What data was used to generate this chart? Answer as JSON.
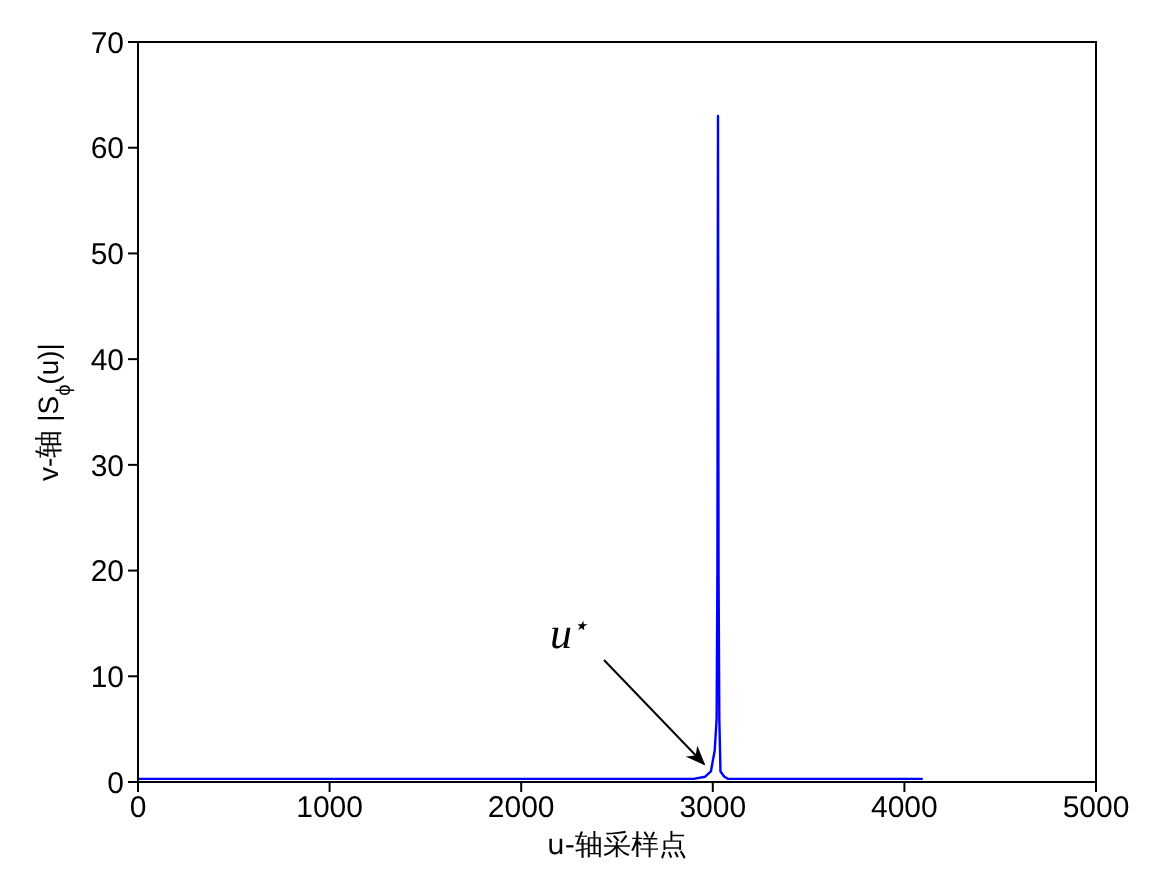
{
  "chart_data": {
    "type": "line",
    "xlabel": "u-轴采样点",
    "ylabel": "v-轴 |S$_{ϕ}$(u)|",
    "x": [
      0,
      1000,
      2000,
      2900,
      2960,
      2990,
      3010,
      3020,
      3024,
      3027,
      3030,
      3034,
      3040,
      3060,
      3080,
      3500,
      4096
    ],
    "series": [
      {
        "color": "#0000ff",
        "values": [
          0.3,
          0.3,
          0.3,
          0.3,
          0.5,
          1,
          3,
          6,
          20,
          63,
          20,
          6,
          1,
          0.5,
          0.3,
          0.3,
          0.3
        ]
      }
    ],
    "xlim": [
      0,
      5000
    ],
    "xticks": [
      0,
      1000,
      2000,
      3000,
      4000,
      5000
    ],
    "ylim": [
      0,
      70
    ],
    "yticks": [
      0,
      10,
      20,
      30,
      40,
      50,
      60,
      70
    ],
    "grid": false,
    "legend": false,
    "marker": "none",
    "line_style": "solid",
    "annotations": [
      {
        "text": "u$^{⋆}$",
        "x": 2954,
        "y": 1.7
      }
    ]
  }
}
